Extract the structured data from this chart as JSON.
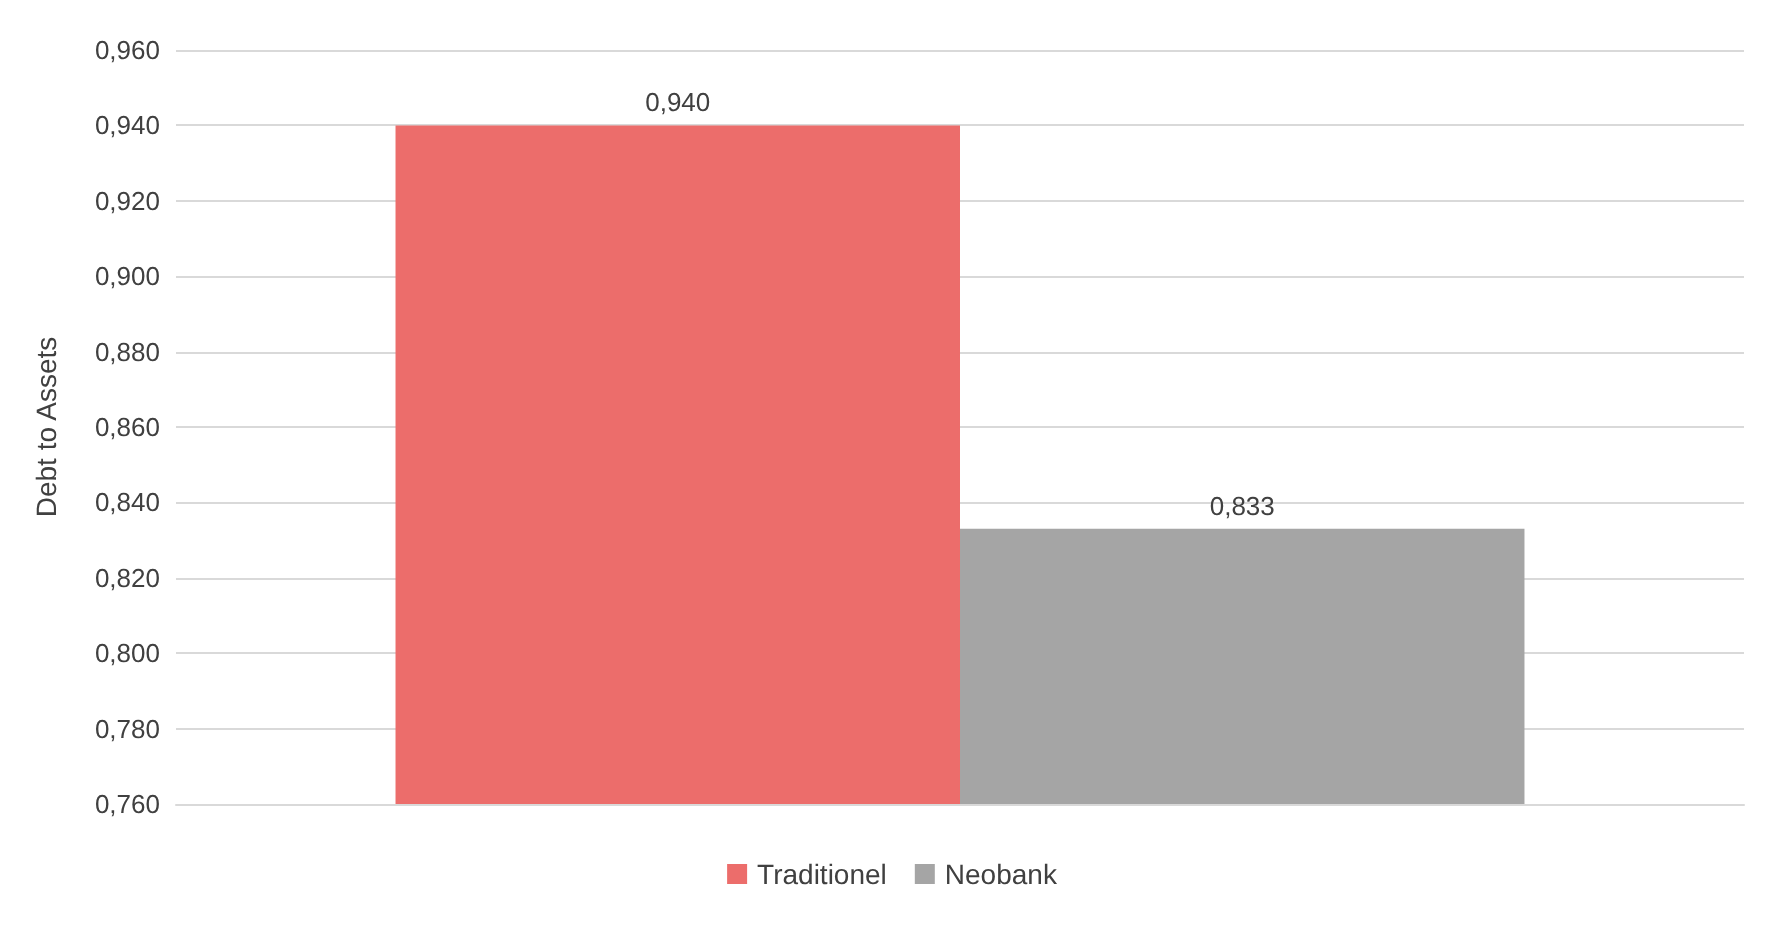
{
  "chart_data": {
    "type": "bar",
    "ylabel": "Debt to Assets",
    "categories": [
      null
    ],
    "series": [
      {
        "name": "Traditionel",
        "color": "#ec6d6b",
        "values": [
          0.94
        ],
        "value_labels": [
          "0,940"
        ]
      },
      {
        "name": "Neobank",
        "color": "#a5a5a5",
        "values": [
          0.833
        ],
        "value_labels": [
          "0,833"
        ]
      }
    ],
    "ylim": [
      0.76,
      0.96
    ],
    "yticks": [
      {
        "value": 0.76,
        "label": "0,760"
      },
      {
        "value": 0.78,
        "label": "0,780"
      },
      {
        "value": 0.8,
        "label": "0,800"
      },
      {
        "value": 0.82,
        "label": "0,820"
      },
      {
        "value": 0.84,
        "label": "0,840"
      },
      {
        "value": 0.86,
        "label": "0,860"
      },
      {
        "value": 0.88,
        "label": "0,880"
      },
      {
        "value": 0.9,
        "label": "0,900"
      },
      {
        "value": 0.92,
        "label": "0,920"
      },
      {
        "value": 0.94,
        "label": "0,940"
      },
      {
        "value": 0.96,
        "label": "0,960"
      }
    ],
    "grid": "y",
    "legend": "bottom"
  }
}
